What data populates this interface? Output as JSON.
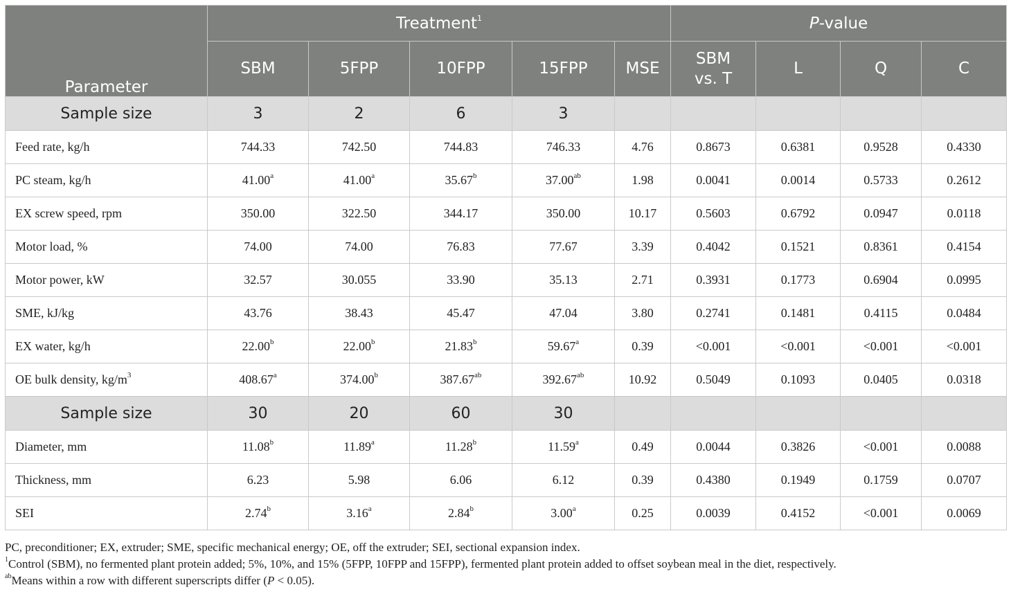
{
  "header": {
    "treatment": "Treatment",
    "treatment_sup": "1",
    "pvalue_italic": "P",
    "pvalue_rest": "-value",
    "parameter": "Parameter",
    "columns": [
      "SBM",
      "5FPP",
      "10FPP",
      "15FPP",
      "MSE",
      "SBM vs. T",
      "L",
      "Q",
      "C"
    ]
  },
  "sample_rows": [
    {
      "label": "Sample size",
      "values": [
        "3",
        "2",
        "6",
        "3"
      ]
    },
    {
      "label": "Sample size",
      "values": [
        "30",
        "20",
        "60",
        "30"
      ]
    }
  ],
  "rows_a": [
    {
      "label": "Feed rate, kg/h",
      "values": [
        "744.33",
        "742.50",
        "744.83",
        "746.33",
        "4.76",
        "0.8673",
        "0.6381",
        "0.9528",
        "0.4330"
      ],
      "sups": [
        "",
        "",
        "",
        "",
        "",
        "",
        "",
        "",
        ""
      ]
    },
    {
      "label": "PC steam, kg/h",
      "values": [
        "41.00",
        "41.00",
        "35.67",
        "37.00",
        "1.98",
        "0.0041",
        "0.0014",
        "0.5733",
        "0.2612"
      ],
      "sups": [
        "a",
        "a",
        "b",
        "ab",
        "",
        "",
        "",
        "",
        ""
      ]
    },
    {
      "label": "EX screw speed, rpm",
      "values": [
        "350.00",
        "322.50",
        "344.17",
        "350.00",
        "10.17",
        "0.5603",
        "0.6792",
        "0.0947",
        "0.0118"
      ],
      "sups": [
        "",
        "",
        "",
        "",
        "",
        "",
        "",
        "",
        ""
      ]
    },
    {
      "label": "Motor load, %",
      "values": [
        "74.00",
        "74.00",
        "76.83",
        "77.67",
        "3.39",
        "0.4042",
        "0.1521",
        "0.8361",
        "0.4154"
      ],
      "sups": [
        "",
        "",
        "",
        "",
        "",
        "",
        "",
        "",
        ""
      ]
    },
    {
      "label": "Motor power, kW",
      "values": [
        "32.57",
        "30.055",
        "33.90",
        "35.13",
        "2.71",
        "0.3931",
        "0.1773",
        "0.6904",
        "0.0995"
      ],
      "sups": [
        "",
        "",
        "",
        "",
        "",
        "",
        "",
        "",
        ""
      ]
    },
    {
      "label": "SME, kJ/kg",
      "values": [
        "43.76",
        "38.43",
        "45.47",
        "47.04",
        "3.80",
        "0.2741",
        "0.1481",
        "0.4115",
        "0.0484"
      ],
      "sups": [
        "",
        "",
        "",
        "",
        "",
        "",
        "",
        "",
        ""
      ]
    },
    {
      "label": "EX water, kg/h",
      "values": [
        "22.00",
        "22.00",
        "21.83",
        "59.67",
        "0.39",
        "<0.001",
        "<0.001",
        "<0.001",
        "<0.001"
      ],
      "sups": [
        "b",
        "b",
        "b",
        "a",
        "",
        "",
        "",
        "",
        ""
      ]
    },
    {
      "label": "OE bulk density, kg/m",
      "label_sup": "3",
      "values": [
        "408.67",
        "374.00",
        "387.67",
        "392.67",
        "10.92",
        "0.5049",
        "0.1093",
        "0.0405",
        "0.0318"
      ],
      "sups": [
        "a",
        "b",
        "ab",
        "ab",
        "",
        "",
        "",
        "",
        ""
      ]
    }
  ],
  "rows_b": [
    {
      "label": "Diameter, mm",
      "values": [
        "11.08",
        "11.89",
        "11.28",
        "11.59",
        "0.49",
        "0.0044",
        "0.3826",
        "<0.001",
        "0.0088"
      ],
      "sups": [
        "b",
        "a",
        "b",
        "a",
        "",
        "",
        "",
        "",
        ""
      ]
    },
    {
      "label": "Thickness, mm",
      "values": [
        "6.23",
        "5.98",
        "6.06",
        "6.12",
        "0.39",
        "0.4380",
        "0.1949",
        "0.1759",
        "0.0707"
      ],
      "sups": [
        "",
        "",
        "",
        "",
        "",
        "",
        "",
        "",
        ""
      ]
    },
    {
      "label": "SEI",
      "values": [
        "2.74",
        "3.16",
        "2.84",
        "3.00",
        "0.25",
        "0.0039",
        "0.4152",
        "<0.001",
        "0.0069"
      ],
      "sups": [
        "b",
        "a",
        "b",
        "a",
        "",
        "",
        "",
        "",
        ""
      ]
    }
  ],
  "footnotes": {
    "abbrev": "PC, preconditioner; EX, extruder; SME, specific mechanical energy; OE, off the extruder; SEI, sectional expansion index.",
    "note1_sup": "1",
    "note1": "Control (SBM), no fermented plant protein added; 5%, 10%, and 15% (5FPP, 10FPP and 15FPP), fermented plant protein added to offset soybean meal in the diet, respectively.",
    "note2_sup": "ab",
    "note2_a": "Means within a row with different superscripts differ (",
    "note2_p": "P",
    "note2_b": " < 0.05)."
  }
}
